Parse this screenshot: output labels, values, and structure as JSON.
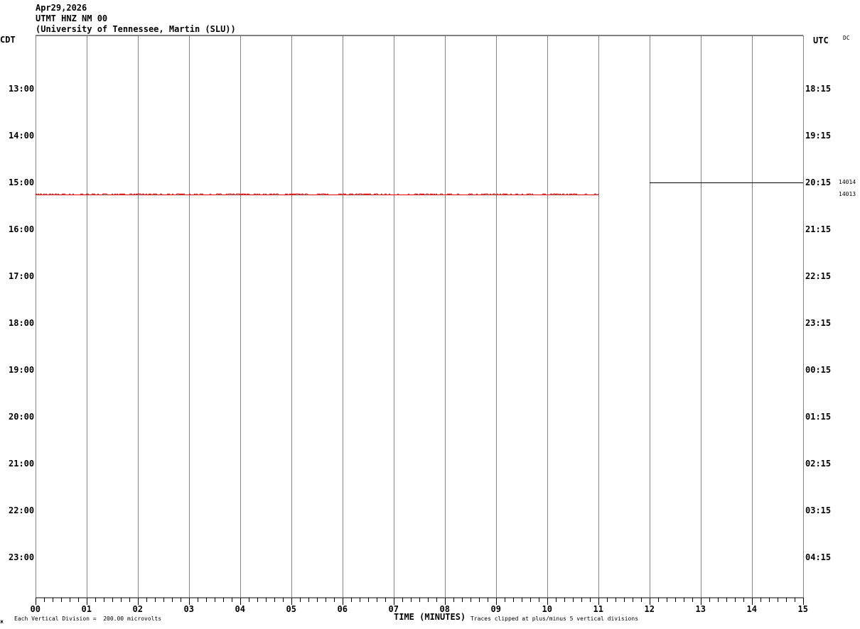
{
  "header": {
    "date": "Apr29,2026",
    "station": "UTMT HNZ NM 00",
    "network": "(University of Tennessee, Martin (SLU))"
  },
  "left_axis_label": "CDT",
  "right_axis_label": "UTC",
  "dc_label": "DC",
  "footer": {
    "corner_mark": "ж",
    "scale_note": "Each Vertical Division =  200.00 microvolts",
    "xlabel": "TIME (MINUTES)",
    "clip_note": "Traces clipped at plus/minus 5 vertical divisions"
  },
  "chart_data": {
    "type": "line",
    "title": "UTMT HNZ NM 00",
    "xlabel": "TIME (MINUTES)",
    "xlim": [
      0,
      15
    ],
    "x_ticks": [
      "00",
      "01",
      "02",
      "03",
      "04",
      "05",
      "06",
      "07",
      "08",
      "09",
      "10",
      "11",
      "12",
      "13",
      "14",
      "15"
    ],
    "y_left_ticks": [
      "13:00",
      "14:00",
      "15:00",
      "16:00",
      "17:00",
      "18:00",
      "19:00",
      "20:00",
      "21:00",
      "22:00",
      "23:00"
    ],
    "y_right_ticks": [
      "18:15",
      "19:15",
      "20:15",
      "21:15",
      "22:15",
      "23:15",
      "00:15",
      "01:15",
      "02:15",
      "03:15",
      "04:15"
    ],
    "row_minutes": 15,
    "grid": true,
    "trace_labels": [
      "14014",
      "14013"
    ],
    "traces": [
      {
        "row_start_cdt": "15:00",
        "x_range": [
          12,
          15
        ],
        "color": "#000000"
      },
      {
        "row_start_cdt": "15:15",
        "x_range": [
          0,
          11
        ],
        "color": "#ff0000"
      }
    ]
  }
}
